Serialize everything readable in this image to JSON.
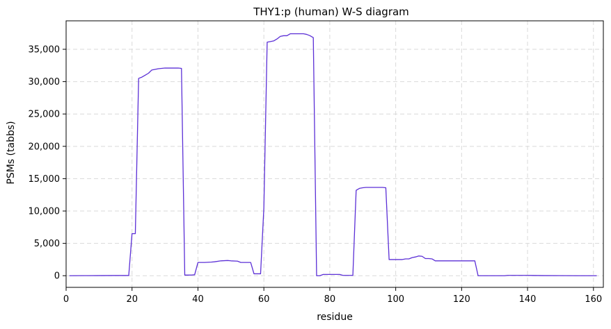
{
  "chart_data": {
    "type": "line",
    "title": "THY1:p (human) W-S diagram",
    "xlabel": "residue",
    "ylabel": "PSMs (tabbs)",
    "xlim": [
      0,
      163
    ],
    "ylim": [
      -1800,
      39400
    ],
    "xticks": [
      0,
      20,
      40,
      60,
      80,
      100,
      120,
      140,
      160
    ],
    "xtick_labels": [
      "0",
      "20",
      "40",
      "60",
      "80",
      "100",
      "120",
      "140",
      "160"
    ],
    "yticks": [
      0,
      5000,
      10000,
      15000,
      20000,
      25000,
      30000,
      35000
    ],
    "ytick_labels": [
      "0",
      "5,000",
      "10,000",
      "15,000",
      "20,000",
      "25,000",
      "30,000",
      "35,000"
    ],
    "grid": true,
    "color": "#5b2fd6",
    "series": [
      {
        "x": [
          1,
          5,
          10,
          15,
          19,
          20,
          21,
          22,
          23,
          24,
          25,
          26,
          28,
          30,
          32,
          34,
          35,
          36,
          38,
          39,
          40,
          42,
          44,
          45,
          47,
          49,
          50,
          52,
          53,
          55,
          56,
          57,
          59,
          60,
          61,
          62,
          63,
          64,
          65,
          66,
          67,
          68,
          70,
          72,
          73,
          74,
          75,
          76,
          77,
          78,
          80,
          82,
          83,
          84,
          86,
          87,
          88,
          89,
          90,
          91,
          92,
          94,
          96,
          97,
          98,
          100,
          102,
          103,
          104,
          105,
          106,
          107,
          108,
          109,
          110,
          111,
          112,
          114,
          116,
          118,
          120,
          122,
          124,
          125,
          128,
          130,
          133,
          134,
          137,
          140,
          145,
          150,
          155,
          160,
          161
        ],
        "y": [
          0,
          10,
          20,
          30,
          30,
          6500,
          6500,
          30500,
          30700,
          31000,
          31300,
          31800,
          32000,
          32100,
          32100,
          32100,
          32050,
          100,
          100,
          150,
          2050,
          2050,
          2100,
          2150,
          2300,
          2350,
          2300,
          2250,
          2050,
          2050,
          2050,
          300,
          300,
          10500,
          36100,
          36200,
          36300,
          36600,
          37000,
          37100,
          37100,
          37400,
          37400,
          37400,
          37300,
          37100,
          36800,
          0,
          0,
          200,
          200,
          200,
          200,
          50,
          50,
          50,
          13200,
          13500,
          13600,
          13650,
          13650,
          13650,
          13650,
          13600,
          2500,
          2500,
          2500,
          2600,
          2600,
          2800,
          2900,
          3050,
          3000,
          2650,
          2650,
          2600,
          2300,
          2300,
          2300,
          2300,
          2300,
          2300,
          2300,
          0,
          0,
          0,
          0,
          50,
          50,
          50,
          20,
          10,
          0,
          0,
          0
        ]
      }
    ]
  }
}
